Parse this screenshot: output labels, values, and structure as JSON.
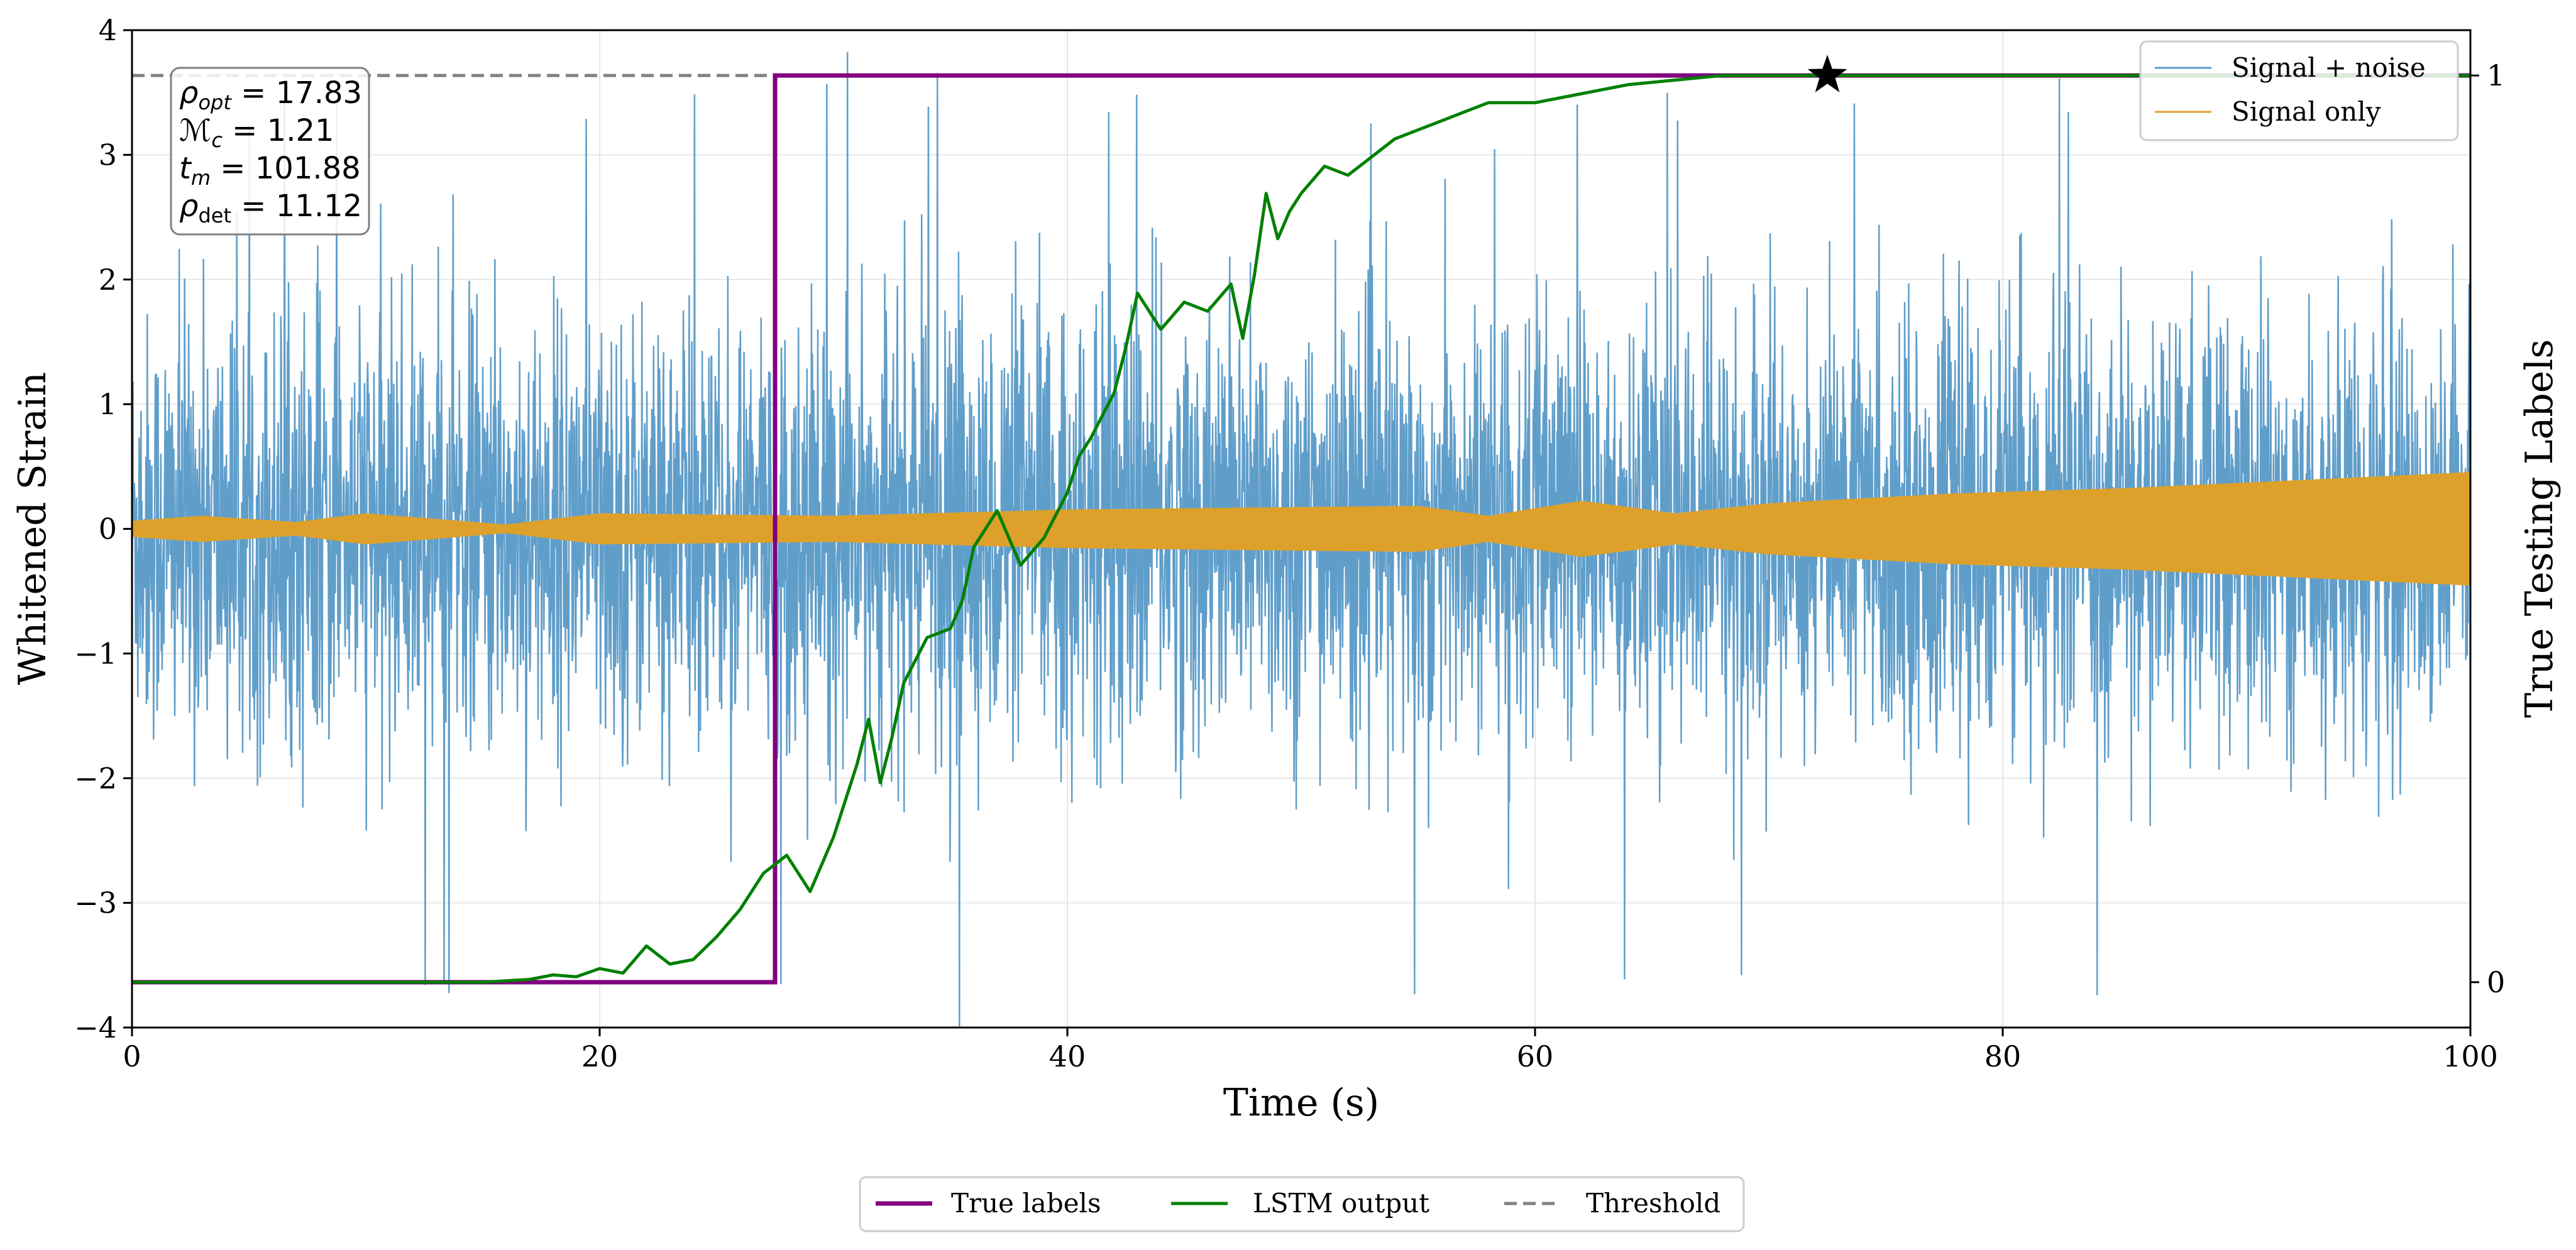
{
  "chart_data": {
    "type": "line",
    "xlabel": "Time (s)",
    "ylabel": "Whitened Strain",
    "y2label": "True Testing Labels",
    "xlim": [
      0,
      100
    ],
    "ylim": [
      -4,
      4
    ],
    "y2lim": [
      -0.05,
      1.05
    ],
    "x_ticks": [
      "0",
      "20",
      "40",
      "60",
      "80",
      "100"
    ],
    "y_ticks": [
      "−4",
      "−3",
      "−2",
      "−1",
      "0",
      "1",
      "2",
      "3",
      "4"
    ],
    "y2_ticks": [
      "0",
      "1"
    ],
    "grid": true,
    "threshold": 1.0,
    "detection_time": 72.5,
    "annotation": {
      "rho_opt": "17.83",
      "mc": "1.21",
      "tm": "101.88",
      "rho_det": "11.12"
    },
    "series": [
      {
        "name": "Signal + noise",
        "color": "#5799c7",
        "axis": "left",
        "style": "noise",
        "envelope_std": 0.85,
        "extreme_range": [
          -4,
          3.85
        ]
      },
      {
        "name": "Signal only",
        "color": "#dda12b",
        "axis": "left",
        "style": "band",
        "x": [
          0,
          3,
          7,
          10,
          16,
          20,
          30,
          40,
          55,
          58,
          62,
          66,
          70,
          78,
          85,
          92,
          100
        ],
        "amplitude": [
          0.06,
          0.1,
          0.05,
          0.12,
          0.03,
          0.12,
          0.1,
          0.15,
          0.18,
          0.1,
          0.22,
          0.12,
          0.2,
          0.28,
          0.32,
          0.38,
          0.45
        ]
      },
      {
        "name": "True labels",
        "color": "#800080",
        "axis": "right",
        "style": "step",
        "x": [
          0,
          27.5,
          27.5,
          100
        ],
        "y": [
          0,
          0,
          1,
          1
        ]
      },
      {
        "name": "LSTM output",
        "color": "#008000",
        "axis": "right",
        "style": "line",
        "x": [
          0,
          5,
          10,
          15,
          17,
          18,
          19,
          20,
          21,
          22,
          23,
          24,
          25,
          26,
          27,
          28,
          29,
          30,
          30.5,
          31,
          31.5,
          32,
          32.5,
          33,
          34,
          35,
          35.5,
          36,
          37,
          38,
          39,
          40,
          40.5,
          41,
          42,
          42.5,
          43,
          44,
          45,
          46,
          47,
          47.5,
          48,
          48.5,
          49,
          49.5,
          50,
          51,
          52,
          53,
          54,
          55,
          56,
          57,
          58,
          60,
          62,
          64,
          66,
          68,
          70,
          72,
          75,
          80,
          90,
          100
        ],
        "y": [
          0,
          0,
          0,
          0,
          0.003,
          0.008,
          0.006,
          0.015,
          0.01,
          0.04,
          0.02,
          0.025,
          0.05,
          0.08,
          0.12,
          0.14,
          0.1,
          0.16,
          0.2,
          0.24,
          0.29,
          0.22,
          0.27,
          0.33,
          0.38,
          0.39,
          0.42,
          0.48,
          0.52,
          0.46,
          0.49,
          0.54,
          0.58,
          0.6,
          0.65,
          0.7,
          0.76,
          0.72,
          0.75,
          0.74,
          0.77,
          0.71,
          0.78,
          0.87,
          0.82,
          0.85,
          0.87,
          0.9,
          0.89,
          0.91,
          0.93,
          0.94,
          0.95,
          0.96,
          0.97,
          0.97,
          0.98,
          0.99,
          0.995,
          1.0,
          1.0,
          1.0,
          1.0,
          1.0,
          1.0,
          1.0
        ]
      },
      {
        "name": "Threshold",
        "color": "#808080",
        "axis": "right",
        "style": "dashed",
        "y": 1.0
      }
    ],
    "legend_top": [
      "Signal + noise",
      "Signal only"
    ],
    "legend_bottom": [
      "True labels",
      "LSTM output",
      "Threshold"
    ]
  }
}
